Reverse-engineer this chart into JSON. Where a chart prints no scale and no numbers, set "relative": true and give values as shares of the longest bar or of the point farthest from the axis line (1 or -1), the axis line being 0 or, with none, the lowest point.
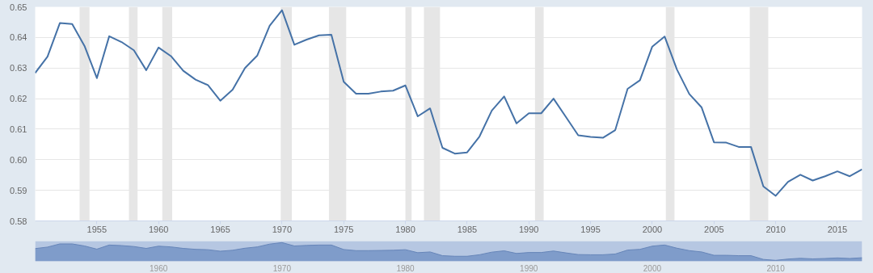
{
  "chart_data": [
    {
      "type": "line",
      "x": [
        1950,
        1951,
        1952,
        1953,
        1954,
        1955,
        1956,
        1957,
        1958,
        1959,
        1960,
        1961,
        1962,
        1963,
        1964,
        1965,
        1966,
        1967,
        1968,
        1969,
        1970,
        1971,
        1972,
        1973,
        1974,
        1975,
        1976,
        1977,
        1978,
        1979,
        1980,
        1981,
        1982,
        1983,
        1984,
        1985,
        1986,
        1987,
        1988,
        1989,
        1990,
        1991,
        1992,
        1993,
        1994,
        1995,
        1996,
        1997,
        1998,
        1999,
        2000,
        2001,
        2002,
        2003,
        2004,
        2005,
        2006,
        2007,
        2008,
        2009,
        2010,
        2011,
        2012,
        2013,
        2014,
        2015,
        2016,
        2017
      ],
      "series": [
        {
          "color": "#4572a7",
          "values": [
            0.6284,
            0.6337,
            0.6447,
            0.6444,
            0.6372,
            0.6267,
            0.6404,
            0.6385,
            0.6358,
            0.6293,
            0.6367,
            0.6339,
            0.6291,
            0.6262,
            0.6244,
            0.6193,
            0.6229,
            0.63,
            0.6341,
            0.6438,
            0.6489,
            0.6376,
            0.6393,
            0.6407,
            0.6409,
            0.6255,
            0.6216,
            0.6216,
            0.6223,
            0.6226,
            0.6243,
            0.6142,
            0.6168,
            0.6039,
            0.602,
            0.6024,
            0.6076,
            0.6161,
            0.6207,
            0.6119,
            0.6152,
            0.6152,
            0.62,
            0.614,
            0.608,
            0.6075,
            0.6072,
            0.6097,
            0.6232,
            0.626,
            0.637,
            0.6403,
            0.6295,
            0.6215,
            0.6171,
            0.6057,
            0.6056,
            0.6042,
            0.6042,
            0.5913,
            0.5882,
            0.5928,
            0.5951,
            0.5932,
            0.5946,
            0.5962,
            0.5946,
            0.5969
          ]
        }
      ],
      "xlim": [
        1950,
        2017
      ],
      "xticks": [
        1955,
        1960,
        1965,
        1970,
        1975,
        1980,
        1985,
        1990,
        1995,
        2000,
        2005,
        2010,
        2015
      ],
      "ylim": [
        0.58,
        0.65
      ],
      "yticks": [
        {
          "value": 0.58,
          "label": "0.58"
        },
        {
          "value": 0.59,
          "label": "0.59"
        },
        {
          "value": 0.6,
          "label": "0.60"
        },
        {
          "value": 0.61,
          "label": "0.61"
        },
        {
          "value": 0.62,
          "label": "0.62"
        },
        {
          "value": 0.63,
          "label": "0.63"
        },
        {
          "value": 0.64,
          "label": "0.64"
        },
        {
          "value": 0.65,
          "label": "0.65"
        }
      ],
      "grid": "y",
      "line_style": "solid",
      "bands": [
        {
          "axis": "x",
          "from": 1953.6,
          "to": 1954.4,
          "color": "#e6e6e6"
        },
        {
          "axis": "x",
          "from": 1957.6,
          "to": 1958.3,
          "color": "#e6e6e6"
        },
        {
          "axis": "x",
          "from": 1960.3,
          "to": 1961.1,
          "color": "#e6e6e6"
        },
        {
          "axis": "x",
          "from": 1969.9,
          "to": 1970.8,
          "color": "#e6e6e6"
        },
        {
          "axis": "x",
          "from": 1973.8,
          "to": 1975.2,
          "color": "#e6e6e6"
        },
        {
          "axis": "x",
          "from": 1980.0,
          "to": 1980.5,
          "color": "#e6e6e6"
        },
        {
          "axis": "x",
          "from": 1981.5,
          "to": 1982.8,
          "color": "#e6e6e6"
        },
        {
          "axis": "x",
          "from": 1990.5,
          "to": 1991.2,
          "color": "#e6e6e6"
        },
        {
          "axis": "x",
          "from": 2001.1,
          "to": 2001.8,
          "color": "#e6e6e6"
        },
        {
          "axis": "x",
          "from": 2007.9,
          "to": 2009.4,
          "color": "#e6e6e6"
        }
      ]
    },
    {
      "type": "area",
      "relative": true,
      "x": [
        1950,
        1951,
        1952,
        1953,
        1954,
        1955,
        1956,
        1957,
        1958,
        1959,
        1960,
        1961,
        1962,
        1963,
        1964,
        1965,
        1966,
        1967,
        1968,
        1969,
        1970,
        1971,
        1972,
        1973,
        1974,
        1975,
        1976,
        1977,
        1978,
        1979,
        1980,
        1981,
        1982,
        1983,
        1984,
        1985,
        1986,
        1987,
        1988,
        1989,
        1990,
        1991,
        1992,
        1993,
        1994,
        1995,
        1996,
        1997,
        1998,
        1999,
        2000,
        2001,
        2002,
        2003,
        2004,
        2005,
        2006,
        2007,
        2008,
        2009,
        2010,
        2011,
        2012,
        2013,
        2014,
        2015,
        2016,
        2017
      ],
      "series": [
        {
          "color": "#7f9cca",
          "values": [
            0.68,
            0.76,
            0.93,
            0.93,
            0.82,
            0.65,
            0.87,
            0.84,
            0.79,
            0.69,
            0.81,
            0.77,
            0.69,
            0.64,
            0.62,
            0.54,
            0.59,
            0.7,
            0.77,
            0.92,
            1,
            0.82,
            0.85,
            0.87,
            0.87,
            0.63,
            0.57,
            0.57,
            0.58,
            0.59,
            0.62,
            0.46,
            0.5,
            0.3,
            0.27,
            0.27,
            0.35,
            0.49,
            0.56,
            0.42,
            0.47,
            0.47,
            0.55,
            0.45,
            0.36,
            0.35,
            0.35,
            0.39,
            0.6,
            0.64,
            0.81,
            0.87,
            0.7,
            0.57,
            0.5,
            0.32,
            0.32,
            0.3,
            0.3,
            0.1,
            0.05,
            0.12,
            0.16,
            0.13,
            0.15,
            0.18,
            0.15,
            0.19
          ]
        }
      ],
      "xlim": [
        1950,
        2017
      ],
      "xticks": [
        1960,
        1970,
        1980,
        1990,
        2000,
        2010
      ],
      "bands": [
        {
          "axis": "x",
          "from": 1950,
          "to": 2017,
          "color": "#b6c7e2"
        }
      ],
      "grid": false
    }
  ]
}
